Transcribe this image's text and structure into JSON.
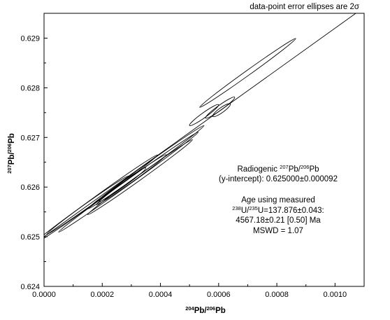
{
  "chart_data": {
    "type": "scatter",
    "subtype": "isochron-with-error-ellipses",
    "note": "data-point error ellipses are 2σ",
    "xlabel": {
      "sup1": "204",
      "main1": "Pb/",
      "sup2": "206",
      "main2": "Pb"
    },
    "ylabel": {
      "sup1": "207",
      "main1": "Pb/",
      "sup2": "206",
      "main2": "Pb"
    },
    "xlim": [
      0,
      0.0011
    ],
    "ylim": [
      0.624,
      0.6295
    ],
    "x_ticks": [
      0,
      0.0002,
      0.0004,
      0.0006,
      0.0008,
      0.001
    ],
    "x_tick_labels": [
      "0.0000",
      "0.0002",
      "0.0004",
      "0.0006",
      "0.0008",
      "0.0010"
    ],
    "y_ticks": [
      0.624,
      0.625,
      0.626,
      0.627,
      0.628,
      0.629
    ],
    "y_tick_labels": [
      "0.624",
      "0.625",
      "0.626",
      "0.627",
      "0.628",
      "0.629"
    ],
    "grid": false,
    "isochron": {
      "intercept": 0.625,
      "slope": 4.2
    },
    "ellipses": [
      {
        "x": 0.0007,
        "y": 0.6283,
        "rx": 0.000165,
        "ry": 0.000175,
        "slope": 4.2
      },
      {
        "x": 0.000605,
        "y": 0.6276,
        "rx": 5e-05,
        "ry": 9e-05,
        "slope": 4.2
      },
      {
        "x": 0.00061,
        "y": 0.62755,
        "rx": 3e-05,
        "ry": 6e-05,
        "slope": 4.2
      },
      {
        "x": 0.00055,
        "y": 0.62745,
        "rx": 5e-05,
        "ry": 6e-05,
        "slope": 4.2
      },
      {
        "x": 0.00029,
        "y": 0.6261,
        "rx": 0.00024,
        "ry": 0.0002,
        "slope": 4.2
      },
      {
        "x": 0.00035,
        "y": 0.6264,
        "rx": 0.0002,
        "ry": 0.00018,
        "slope": 4.2
      },
      {
        "x": 0.00033,
        "y": 0.6262,
        "rx": 0.00018,
        "ry": 0.00012,
        "slope": 4.2
      },
      {
        "x": 0.0003,
        "y": 0.62615,
        "rx": 0.00012,
        "ry": 0.0001,
        "slope": 4.2
      },
      {
        "x": 0.00027,
        "y": 0.62605,
        "rx": 8e-05,
        "ry": 8e-05,
        "slope": 4.2
      },
      {
        "x": 0.0002,
        "y": 0.62585,
        "rx": 0.00019,
        "ry": 0.00011,
        "slope": 4.2
      },
      {
        "x": 0.00013,
        "y": 0.62555,
        "rx": 0.00016,
        "ry": 0.0001,
        "slope": 4.2
      }
    ],
    "annotations": {
      "line1": {
        "pre": "Radiogenic ",
        "sup1": "207",
        "mid": "Pb/",
        "sup2": "206",
        "post": "Pb"
      },
      "line2": "(y-intercept): 0.625000±0.000092",
      "line3": "Age using measured",
      "line4": {
        "sup1": "238",
        "mid": "U/",
        "sup2": "235",
        "post": "U=137.876±0.043:"
      },
      "line5": "4567.18±0.21 [0.50] Ma",
      "line6": "MSWD = 1.07"
    }
  }
}
